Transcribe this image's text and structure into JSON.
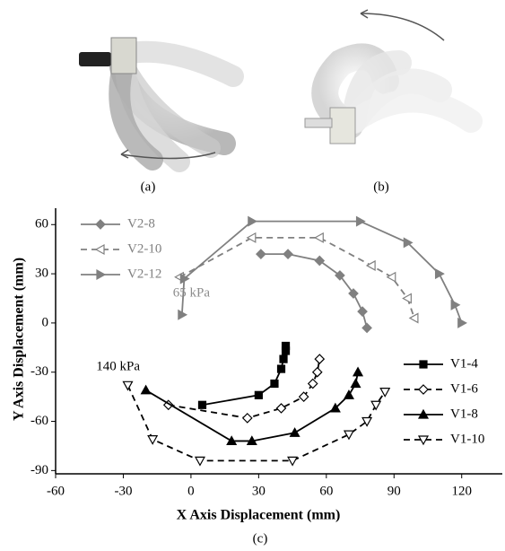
{
  "figure": {
    "panel_a": "(a)",
    "panel_b": "(b)",
    "panel_c": "(c)"
  },
  "chart_data": {
    "type": "line",
    "x_label": "X Axis Displacement (mm)",
    "y_label": "Y Axis Displacement (mm)",
    "xlim": [
      -60,
      138
    ],
    "ylim": [
      -92,
      70
    ],
    "xticks": [
      -60,
      -30,
      0,
      30,
      60,
      90,
      120
    ],
    "yticks": [
      -90,
      -60,
      -30,
      0,
      30,
      60
    ],
    "annotations": [
      {
        "text": "65 kPa",
        "x": -8,
        "y": 18,
        "color": "#8c8c8c"
      },
      {
        "text": "140 kPa",
        "x": -42,
        "y": -27,
        "color": "#000000"
      }
    ],
    "series": [
      {
        "name": "V2-8",
        "color": "#808080",
        "marker": "diamond",
        "filled": true,
        "dashed": false,
        "legend": "upper left",
        "x": [
          31,
          43,
          57,
          66,
          72,
          76,
          78
        ],
        "values": [
          42,
          42,
          38,
          29,
          18,
          7,
          -3
        ]
      },
      {
        "name": "V2-10",
        "color": "#808080",
        "marker": "triangle-left",
        "filled": false,
        "dashed": true,
        "legend": "upper left",
        "x": [
          -5,
          27,
          57,
          80,
          89,
          96,
          99
        ],
        "values": [
          28,
          52,
          52,
          35,
          28,
          15,
          3
        ]
      },
      {
        "name": "V2-12",
        "color": "#808080",
        "marker": "triangle-right",
        "filled": true,
        "dashed": false,
        "legend": "upper left",
        "x": [
          -4,
          -3,
          27,
          75,
          96,
          110,
          117,
          120
        ],
        "values": [
          5,
          27,
          62,
          62,
          49,
          30,
          11,
          0
        ]
      },
      {
        "name": "V1-4",
        "color": "#000000",
        "marker": "square",
        "filled": true,
        "dashed": false,
        "legend": "center right",
        "x": [
          5,
          30,
          37,
          40,
          41,
          42,
          42
        ],
        "values": [
          -50,
          -44,
          -37,
          -28,
          -22,
          -17,
          -14
        ]
      },
      {
        "name": "V1-6",
        "color": "#000000",
        "marker": "diamond",
        "filled": false,
        "dashed": true,
        "legend": "center right",
        "x": [
          -10,
          25,
          40,
          50,
          54,
          56,
          57
        ],
        "values": [
          -50,
          -58,
          -52,
          -45,
          -37,
          -30,
          -22
        ]
      },
      {
        "name": "V1-8",
        "color": "#000000",
        "marker": "triangle-up",
        "filled": true,
        "dashed": false,
        "legend": "center right",
        "x": [
          -20,
          18,
          27,
          46,
          64,
          70,
          73,
          74
        ],
        "values": [
          -41,
          -72,
          -72,
          -67,
          -52,
          -44,
          -37,
          -30
        ]
      },
      {
        "name": "V1-10",
        "color": "#000000",
        "marker": "triangle-down",
        "filled": false,
        "dashed": true,
        "legend": "center right",
        "x": [
          -28,
          -17,
          4,
          45,
          70,
          78,
          82,
          86
        ],
        "values": [
          -38,
          -71,
          -84,
          -84,
          -68,
          -60,
          -50,
          -42
        ]
      }
    ]
  }
}
